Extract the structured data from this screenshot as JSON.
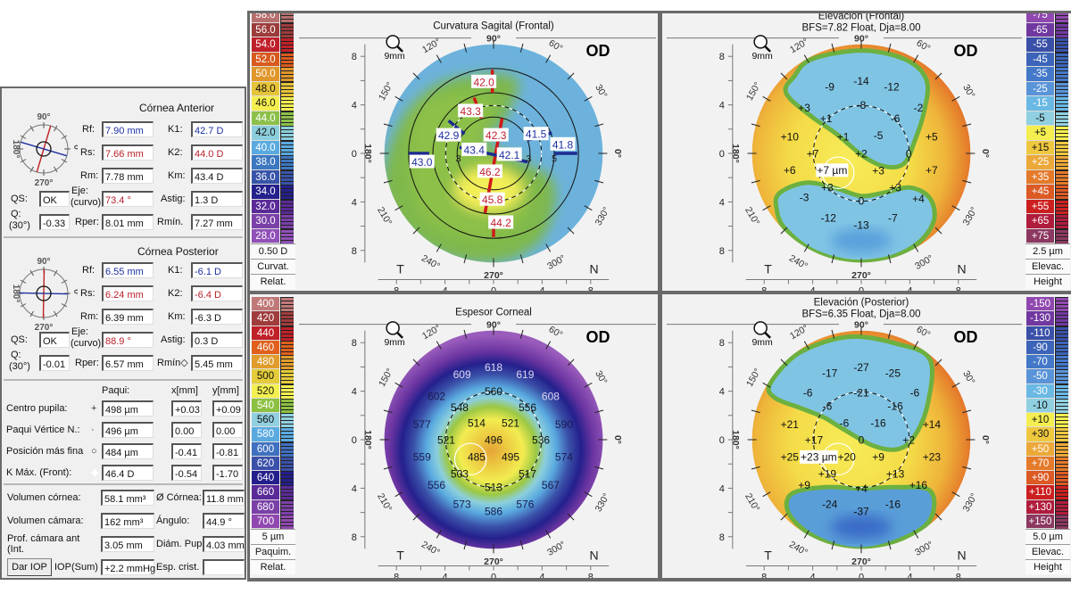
{
  "left_panel": {
    "anterior": {
      "title": "Córnea Anterior",
      "diagram": {
        "top": "90°",
        "bottom": "270°",
        "left": "180°",
        "right": "0°",
        "steep_axis_deg": 73.4
      },
      "rf_label": "Rf:",
      "rf": "7.90 mm",
      "rs_label": "Rs:",
      "rs": "7.66 mm",
      "rm_label": "Rm:",
      "rm": "7.78 mm",
      "k1_label": "K1:",
      "k1": "42.7 D",
      "k2_label": "K2:",
      "k2": "44.0 D",
      "km_label": "Km:",
      "km": "43.4 D",
      "qs_label": "QS:",
      "qs": "OK",
      "eje_label": "Eje:",
      "eje_sub": "(curvo)",
      "eje": "73.4 °",
      "astig_label": "Astig:",
      "astig": "1.3 D",
      "q_label": "Q:",
      "q_sub": "(30°)",
      "q": "-0.33",
      "rper_label": "Rper:",
      "rper": "8.01 mm",
      "rmin_label": "Rmín.",
      "rmin": "7.27 mm"
    },
    "posterior": {
      "title": "Córnea Posterior",
      "diagram": {
        "top": "90°",
        "bottom": "270°",
        "left": "180°",
        "right": "0°",
        "steep_axis_deg": 88.9
      },
      "rf_label": "Rf:",
      "rf": "6.55 mm",
      "rs_label": "Rs:",
      "rs": "6.24 mm",
      "rm_label": "Rm:",
      "rm": "6.39 mm",
      "k1_label": "K1:",
      "k1": "-6.1 D",
      "k2_label": "K2:",
      "k2": "-6.4 D",
      "km_label": "Km:",
      "km": "-6.3 D",
      "qs_label": "QS:",
      "qs": "OK",
      "eje_label": "Eje:",
      "eje_sub": "(curvo)",
      "eje": "88.9 °",
      "astig_label": "Astig:",
      "astig": "0.3 D",
      "q_label": "Q:",
      "q_sub": "(30°)",
      "q": "-0.01",
      "rper_label": "Rper:",
      "rper": "6.57 mm",
      "rmin_label": "Rmín◇",
      "rmin": "5.45 mm"
    },
    "pachy": {
      "col_paqui": "Paqui:",
      "col_x": "x[mm]",
      "col_y": "y[mm]",
      "rows": [
        {
          "label": "Centro pupila:",
          "marker": "+",
          "paqui": "498 µm",
          "x": "+0.03",
          "y": "+0.09"
        },
        {
          "label": "Paqui Vértice N.:",
          "marker": "·",
          "paqui": "496 µm",
          "x": "0.00",
          "y": "0.00"
        },
        {
          "label": "Posición más fina",
          "marker": "○",
          "paqui": "484 µm",
          "x": "-0.41",
          "y": "-0.81"
        },
        {
          "label": "K Máx. (Front):",
          "marker": "◆",
          "paqui": "46.4 D",
          "x": "-0.54",
          "y": "-1.70"
        }
      ]
    },
    "volumes": {
      "vol_cornea_label": "Volumen córnea:",
      "vol_cornea": "58.1 mm³",
      "diam_cornea_label": "Ø Córnea:",
      "diam_cornea": "11.8 mm",
      "vol_camara_label": "Volumen cámara:",
      "vol_camara": "162 mm³",
      "angulo_label": "Ángulo:",
      "angulo": "44.9 °",
      "prof_label": "Prof. cámara ant (Int.",
      "prof": "3.05 mm",
      "diam_pup_label": "Diám. Pup",
      "diam_pup": "4.03 mm",
      "dar_iop_button": "Dar IOP",
      "iop_label": "IOP(Sum)",
      "iop": "+2.2 mmHg",
      "esp_crist_label": "Esp. crist.",
      "esp_crist": ""
    }
  },
  "common": {
    "eye": "OD",
    "zoom_label": "9mm",
    "temporal": "T",
    "nasal": "N",
    "axis_ticks": [
      "8",
      "4",
      "0",
      "4",
      "8"
    ],
    "angle_labels": [
      {
        "deg": 0,
        "text": "0°"
      },
      {
        "deg": 30,
        "text": "30°"
      },
      {
        "deg": 60,
        "text": "60°"
      },
      {
        "deg": 90,
        "text": "90°"
      },
      {
        "deg": 120,
        "text": "120°"
      },
      {
        "deg": 150,
        "text": "150°"
      },
      {
        "deg": 180,
        "text": "180°"
      },
      {
        "deg": 210,
        "text": "210°"
      },
      {
        "deg": 240,
        "text": "240°"
      },
      {
        "deg": 270,
        "text": "270°"
      },
      {
        "deg": 300,
        "text": "300°"
      },
      {
        "deg": 330,
        "text": "330°"
      }
    ]
  },
  "maps": [
    {
      "id": "curvature",
      "title": "Curvatura Sagital (Frontal)",
      "subtitle": "",
      "scale": {
        "step": "0.50 D",
        "type": "Curvat.",
        "mode": "Relat.",
        "items": [
          {
            "label": "58.0",
            "color": "#b8706e"
          },
          {
            "label": "56.0",
            "color": "#9c3b3b"
          },
          {
            "label": "54.0",
            "color": "#c0202a"
          },
          {
            "label": "52.0",
            "color": "#d85a1e"
          },
          {
            "label": "50.0",
            "color": "#e0962a"
          },
          {
            "label": "48.0",
            "color": "#e6c43a"
          },
          {
            "label": "46.0",
            "color": "#f4ee50"
          },
          {
            "label": "44.0",
            "color": "#8cc04a"
          },
          {
            "label": "42.0",
            "color": "#8ccfdc"
          },
          {
            "label": "40.0",
            "color": "#5aaae0"
          },
          {
            "label": "38.0",
            "color": "#3c78c0"
          },
          {
            "label": "36.0",
            "color": "#3854a8"
          },
          {
            "label": "34.0",
            "color": "#24208c"
          },
          {
            "label": "32.0",
            "color": "#5a2a98"
          },
          {
            "label": "30.0",
            "color": "#7a40a8"
          },
          {
            "label": "28.0",
            "color": "#9050b8"
          }
        ]
      },
      "labels": [
        {
          "v": "42.0",
          "x": -0.8,
          "y": 5.9,
          "color": "#c02030"
        },
        {
          "v": "43.3",
          "x": -1.9,
          "y": 3.5,
          "color": "#c02030"
        },
        {
          "v": "42.9",
          "x": -3.7,
          "y": 1.5,
          "color": "#1c2fa0"
        },
        {
          "v": "42.3",
          "x": 0.2,
          "y": 1.5,
          "color": "#c02030"
        },
        {
          "v": "41.5",
          "x": 3.5,
          "y": 1.6,
          "color": "#1c2fa0"
        },
        {
          "v": "41.8",
          "x": 5.7,
          "y": 0.75,
          "color": "#1c2fa0"
        },
        {
          "v": "43.4",
          "x": -1.6,
          "y": 0.3,
          "color": "#1c2fa0"
        },
        {
          "v": "42.1",
          "x": 1.3,
          "y": -0.1,
          "color": "#1c2fa0"
        },
        {
          "v": "43.0",
          "x": -5.9,
          "y": -0.7,
          "color": "#1c2fa0"
        },
        {
          "v": "46.2",
          "x": -0.3,
          "y": -1.5,
          "color": "#c02030"
        },
        {
          "v": "45.8",
          "x": -0.1,
          "y": -3.8,
          "color": "#c02030"
        },
        {
          "v": "44.2",
          "x": 0.6,
          "y": -5.7,
          "color": "#c02030"
        }
      ],
      "ring_labels": [
        {
          "v": "3",
          "x": -2.9,
          "y": -0.1
        },
        {
          "v": "3",
          "x": 2.9,
          "y": -0.1
        },
        {
          "v": "5",
          "x": 5.0,
          "y": -0.1
        }
      ]
    },
    {
      "id": "elev-front",
      "title": "Elevación (Frontal)",
      "subtitle": "BFS=7.82 Float, Dja=8.00",
      "scale": {
        "step": "2.5 µm",
        "type": "Elevac.",
        "mode": "Height",
        "items": [
          {
            "label": "-75",
            "color": "#9048b0"
          },
          {
            "label": "-65",
            "color": "#7038a0"
          },
          {
            "label": "-55",
            "color": "#3a50a8"
          },
          {
            "label": "-45",
            "color": "#3c64b8"
          },
          {
            "label": "-35",
            "color": "#4478c8"
          },
          {
            "label": "-25",
            "color": "#5a94d8"
          },
          {
            "label": "-15",
            "color": "#6ab8e4"
          },
          {
            "label": "-5",
            "color": "#90d0e0"
          },
          {
            "label": "+5",
            "color": "#f4ee50"
          },
          {
            "label": "+15",
            "color": "#f0c840"
          },
          {
            "label": "+25",
            "color": "#eca838"
          },
          {
            "label": "+35",
            "color": "#e47a2a"
          },
          {
            "label": "+45",
            "color": "#dc5a24"
          },
          {
            "label": "+55",
            "color": "#cc2020"
          },
          {
            "label": "+65",
            "color": "#b01c3c"
          },
          {
            "label": "+75",
            "color": "#8c3860"
          }
        ]
      },
      "labels": [
        {
          "v": "-14",
          "x": 0,
          "y": 6.0
        },
        {
          "v": "-9",
          "x": -2.6,
          "y": 5.5
        },
        {
          "v": "-12",
          "x": 2.5,
          "y": 5.5
        },
        {
          "v": "+3",
          "x": -4.7,
          "y": 3.8
        },
        {
          "v": "-8",
          "x": 0,
          "y": 4.0
        },
        {
          "v": "-2",
          "x": 4.7,
          "y": 3.8
        },
        {
          "v": "+1",
          "x": -2.9,
          "y": 2.9
        },
        {
          "v": "-6",
          "x": 2.8,
          "y": 2.9
        },
        {
          "v": "+10",
          "x": -5.9,
          "y": 1.4
        },
        {
          "v": "+1",
          "x": -1.5,
          "y": 1.4
        },
        {
          "v": "-5",
          "x": 1.4,
          "y": 1.5
        },
        {
          "v": "+5",
          "x": 5.8,
          "y": 1.4
        },
        {
          "v": "+7",
          "x": -4.0,
          "y": 0
        },
        {
          "v": "+2",
          "x": 0,
          "y": 0
        },
        {
          "v": "0",
          "x": 3.9,
          "y": 0
        },
        {
          "v": "+6",
          "x": -5.9,
          "y": -1.35
        },
        {
          "v": "+3",
          "x": 1.4,
          "y": -1.4
        },
        {
          "v": "+7",
          "x": 5.8,
          "y": -1.35
        },
        {
          "v": "+3",
          "x": -2.8,
          "y": -2.8
        },
        {
          "v": "+3",
          "x": 2.8,
          "y": -2.8
        },
        {
          "v": "-3",
          "x": -4.7,
          "y": -3.6
        },
        {
          "v": "0",
          "x": 0,
          "y": -3.9
        },
        {
          "v": "+4",
          "x": 4.7,
          "y": -3.7
        },
        {
          "v": "-12",
          "x": -2.7,
          "y": -5.3
        },
        {
          "v": "-13",
          "x": 0,
          "y": -5.9
        },
        {
          "v": "-7",
          "x": 2.6,
          "y": -5.3
        }
      ],
      "thinnest_label": {
        "v": "+7 µm",
        "x": -2.4,
        "y": -1.35
      }
    },
    {
      "id": "pachymetry",
      "title": "Espesor Corneal",
      "subtitle": "",
      "scale": {
        "step": "5 µm",
        "type": "Paquim.",
        "mode": "Relat.",
        "items": [
          {
            "label": "400",
            "color": "#c07878"
          },
          {
            "label": "420",
            "color": "#a03c3c"
          },
          {
            "label": "440",
            "color": "#c02028"
          },
          {
            "label": "460",
            "color": "#e0601c"
          },
          {
            "label": "480",
            "color": "#e09c2c"
          },
          {
            "label": "500",
            "color": "#e4cc3a"
          },
          {
            "label": "520",
            "color": "#f4f050"
          },
          {
            "label": "540",
            "color": "#8cc040"
          },
          {
            "label": "560",
            "color": "#90d0e0"
          },
          {
            "label": "580",
            "color": "#5aaae0"
          },
          {
            "label": "600",
            "color": "#4070c0"
          },
          {
            "label": "620",
            "color": "#3a50a8"
          },
          {
            "label": "640",
            "color": "#241e8c"
          },
          {
            "label": "660",
            "color": "#5a2a98"
          },
          {
            "label": "680",
            "color": "#7a40a8"
          },
          {
            "label": "700",
            "color": "#9048b0"
          }
        ]
      },
      "labels": [
        {
          "v": "618",
          "x": 0,
          "y": 6.0,
          "color": "#dcd4f4"
        },
        {
          "v": "609",
          "x": -2.6,
          "y": 5.4,
          "color": "#dcd4f4"
        },
        {
          "v": "619",
          "x": 2.6,
          "y": 5.4,
          "color": "#dcd4f4"
        },
        {
          "v": "602",
          "x": -4.7,
          "y": 3.6,
          "color": "#1a1a50"
        },
        {
          "v": "560",
          "x": 0,
          "y": 4.0
        },
        {
          "v": "608",
          "x": 4.7,
          "y": 3.6,
          "color": "#dcd4f4"
        },
        {
          "v": "548",
          "x": -2.8,
          "y": 2.7
        },
        {
          "v": "556",
          "x": 2.8,
          "y": 2.7
        },
        {
          "v": "577",
          "x": -5.9,
          "y": 1.3,
          "color": "#1a1a50"
        },
        {
          "v": "514",
          "x": -1.4,
          "y": 1.4
        },
        {
          "v": "521",
          "x": 1.4,
          "y": 1.4
        },
        {
          "v": "590",
          "x": 5.8,
          "y": 1.3,
          "color": "#1a1a50"
        },
        {
          "v": "521",
          "x": -3.9,
          "y": 0
        },
        {
          "v": "496",
          "x": 0,
          "y": 0
        },
        {
          "v": "536",
          "x": 3.9,
          "y": 0
        },
        {
          "v": "559",
          "x": -5.9,
          "y": -1.4,
          "color": "#1a1a50"
        },
        {
          "v": "485",
          "x": -1.4,
          "y": -1.4
        },
        {
          "v": "495",
          "x": 1.4,
          "y": -1.4
        },
        {
          "v": "574",
          "x": 5.8,
          "y": -1.4,
          "color": "#1a1a50"
        },
        {
          "v": "503",
          "x": -2.8,
          "y": -2.8
        },
        {
          "v": "517",
          "x": 2.8,
          "y": -2.8
        },
        {
          "v": "556",
          "x": -4.7,
          "y": -3.7,
          "color": "#1a1a50"
        },
        {
          "v": "513",
          "x": 0,
          "y": -3.9
        },
        {
          "v": "567",
          "x": 4.7,
          "y": -3.7,
          "color": "#1a1a50"
        },
        {
          "v": "573",
          "x": -2.6,
          "y": -5.3,
          "color": "#1a1a50"
        },
        {
          "v": "586",
          "x": 0,
          "y": -5.9,
          "color": "#1a1a50"
        },
        {
          "v": "576",
          "x": 2.6,
          "y": -5.3,
          "color": "#1a1a50"
        }
      ]
    },
    {
      "id": "elev-post",
      "title": "Elevación (Posterior)",
      "subtitle": "BFS=6.35 Float, Dja=8.00",
      "scale": {
        "step": "5.0 µm",
        "type": "Elevac.",
        "mode": "Height",
        "items": [
          {
            "label": "-150",
            "color": "#9048b0"
          },
          {
            "label": "-130",
            "color": "#7038a0"
          },
          {
            "label": "-110",
            "color": "#3a50a8"
          },
          {
            "label": "-90",
            "color": "#3c64b8"
          },
          {
            "label": "-70",
            "color": "#4478c8"
          },
          {
            "label": "-50",
            "color": "#5a94d8"
          },
          {
            "label": "-30",
            "color": "#6ab8e4"
          },
          {
            "label": "-10",
            "color": "#90d0e0"
          },
          {
            "label": "+10",
            "color": "#f4ee50"
          },
          {
            "label": "+30",
            "color": "#f0c840"
          },
          {
            "label": "+50",
            "color": "#eca838"
          },
          {
            "label": "+70",
            "color": "#e47a2a"
          },
          {
            "label": "+90",
            "color": "#dc5a24"
          },
          {
            "label": "+110",
            "color": "#cc2020"
          },
          {
            "label": "+130",
            "color": "#b01c3c"
          },
          {
            "label": "+150",
            "color": "#8c3860"
          }
        ]
      },
      "labels": [
        {
          "v": "-27",
          "x": 0,
          "y": 6.0
        },
        {
          "v": "-17",
          "x": -2.6,
          "y": 5.5
        },
        {
          "v": "-25",
          "x": 2.6,
          "y": 5.5
        },
        {
          "v": "-6",
          "x": -4.4,
          "y": 3.9
        },
        {
          "v": "-21",
          "x": 0,
          "y": 3.9
        },
        {
          "v": "-6",
          "x": 4.4,
          "y": 3.9
        },
        {
          "v": "-6",
          "x": -2.8,
          "y": 2.8
        },
        {
          "v": "-16",
          "x": 2.8,
          "y": 2.8
        },
        {
          "v": "+21",
          "x": -5.9,
          "y": 1.3
        },
        {
          "v": "-6",
          "x": -1.4,
          "y": 1.4
        },
        {
          "v": "-16",
          "x": 1.4,
          "y": 1.4
        },
        {
          "v": "+14",
          "x": 5.8,
          "y": 1.3
        },
        {
          "v": "+17",
          "x": -3.9,
          "y": 0
        },
        {
          "v": "0",
          "x": 0,
          "y": 0
        },
        {
          "v": "+2",
          "x": 3.9,
          "y": 0
        },
        {
          "v": "+25",
          "x": -5.9,
          "y": -1.4
        },
        {
          "v": "+20",
          "x": -1.2,
          "y": -1.4
        },
        {
          "v": "+9",
          "x": 1.4,
          "y": -1.4
        },
        {
          "v": "+23",
          "x": 5.8,
          "y": -1.4
        },
        {
          "v": "+19",
          "x": -2.8,
          "y": -2.8
        },
        {
          "v": "+13",
          "x": 2.8,
          "y": -2.8
        },
        {
          "v": "+9",
          "x": -4.7,
          "y": -3.7
        },
        {
          "v": "+4",
          "x": 0,
          "y": -4.0
        },
        {
          "v": "+16",
          "x": 4.7,
          "y": -3.7
        },
        {
          "v": "-24",
          "x": -2.6,
          "y": -5.3
        },
        {
          "v": "-37",
          "x": 0,
          "y": -5.9
        },
        {
          "v": "-16",
          "x": 2.6,
          "y": -5.3
        }
      ],
      "thinnest_label": {
        "v": "+23 µm",
        "x": -2.4,
        "y": -1.9
      }
    }
  ]
}
